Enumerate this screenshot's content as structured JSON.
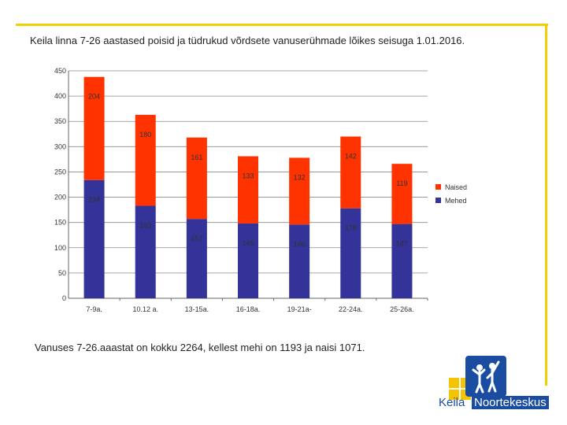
{
  "title": "Keila linna 7-26 aastased poisid ja tüdrukud võrdsete vanuserühmade lõikes seisuga 1.01.2016.",
  "footnote": "Vanuses 7-26.aaastat  on kokku 2264, kellest mehi on 1193 ja naisi 1071.",
  "colors": {
    "mehed": "#333399",
    "naised": "#ff3300",
    "frame": "#f0d000",
    "logo_blue": "#1a4da1",
    "logo_yellow": "#f5c400"
  },
  "logo": {
    "word1": "Keila",
    "word2": "Noortekeskus"
  },
  "chart_data": {
    "type": "bar",
    "stacked": true,
    "categories": [
      "7-9a.",
      "10.12 a.",
      "13-15a.",
      "16-18a.",
      "19-21a-",
      "22-24a.",
      "25-26a."
    ],
    "series": [
      {
        "name": "Mehed",
        "values": [
          234,
          183,
          157,
          148,
          146,
          178,
          147
        ]
      },
      {
        "name": "Naised",
        "values": [
          204,
          180,
          161,
          133,
          132,
          142,
          119
        ]
      }
    ],
    "ylim": [
      0,
      450
    ],
    "yticks": [
      0,
      50,
      100,
      150,
      200,
      250,
      300,
      350,
      400,
      450
    ],
    "grid": true,
    "legend_position": "right"
  }
}
